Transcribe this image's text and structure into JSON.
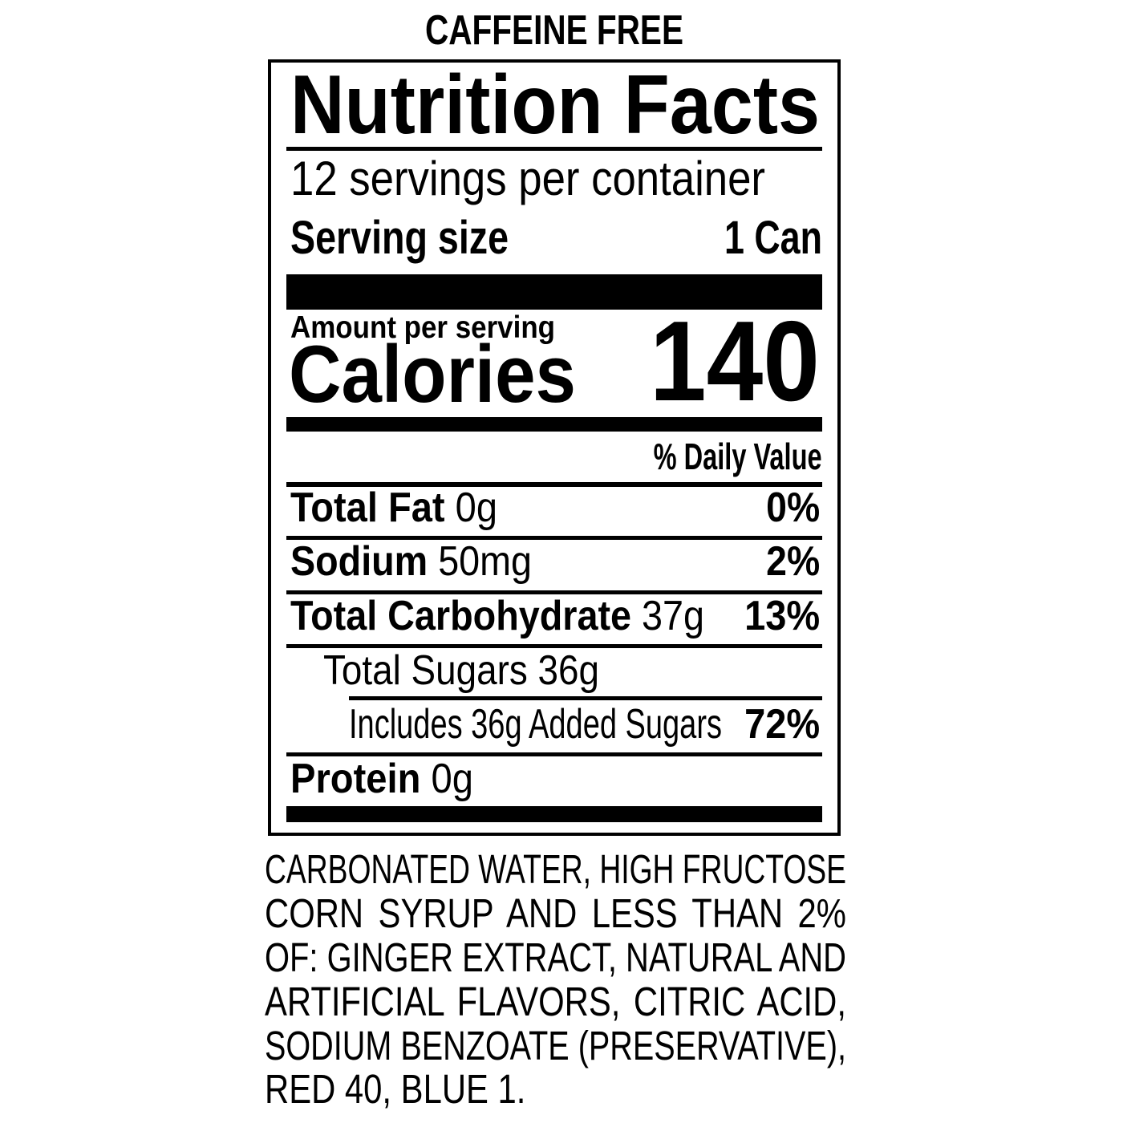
{
  "header_note": "CAFFEINE FREE",
  "label": {
    "title": "Nutrition Facts",
    "servings_per_container": "12 servings per container",
    "serving_size_label": "Serving size",
    "serving_size_value": "1 Can",
    "amount_per_serving": "Amount per serving",
    "calories_label": "Calories",
    "calories_value": "140",
    "daily_value_header": "% Daily Value",
    "nutrients": [
      {
        "name": "Total Fat",
        "amount": "0g",
        "dv": "0%"
      },
      {
        "name": "Sodium",
        "amount": "50mg",
        "dv": "2%"
      },
      {
        "name": "Total Carbohydrate",
        "amount": "37g",
        "dv": "13%"
      },
      {
        "name": "Total Sugars 36g"
      },
      {
        "name": "Includes 36g Added Sugars",
        "dv": "72%"
      },
      {
        "name": "Protein",
        "amount": "0g"
      }
    ]
  },
  "ingredients": [
    "CARBONATED WATER, HIGH FRUCTOSE",
    "CORN SYRUP AND LESS THAN 2%",
    "OF: GINGER EXTRACT, NATURAL AND",
    "ARTIFICIAL FLAVORS, CITRIC ACID,",
    "SODIUM BENZOATE (PRESERVATIVE),",
    "RED 40, BLUE 1."
  ]
}
